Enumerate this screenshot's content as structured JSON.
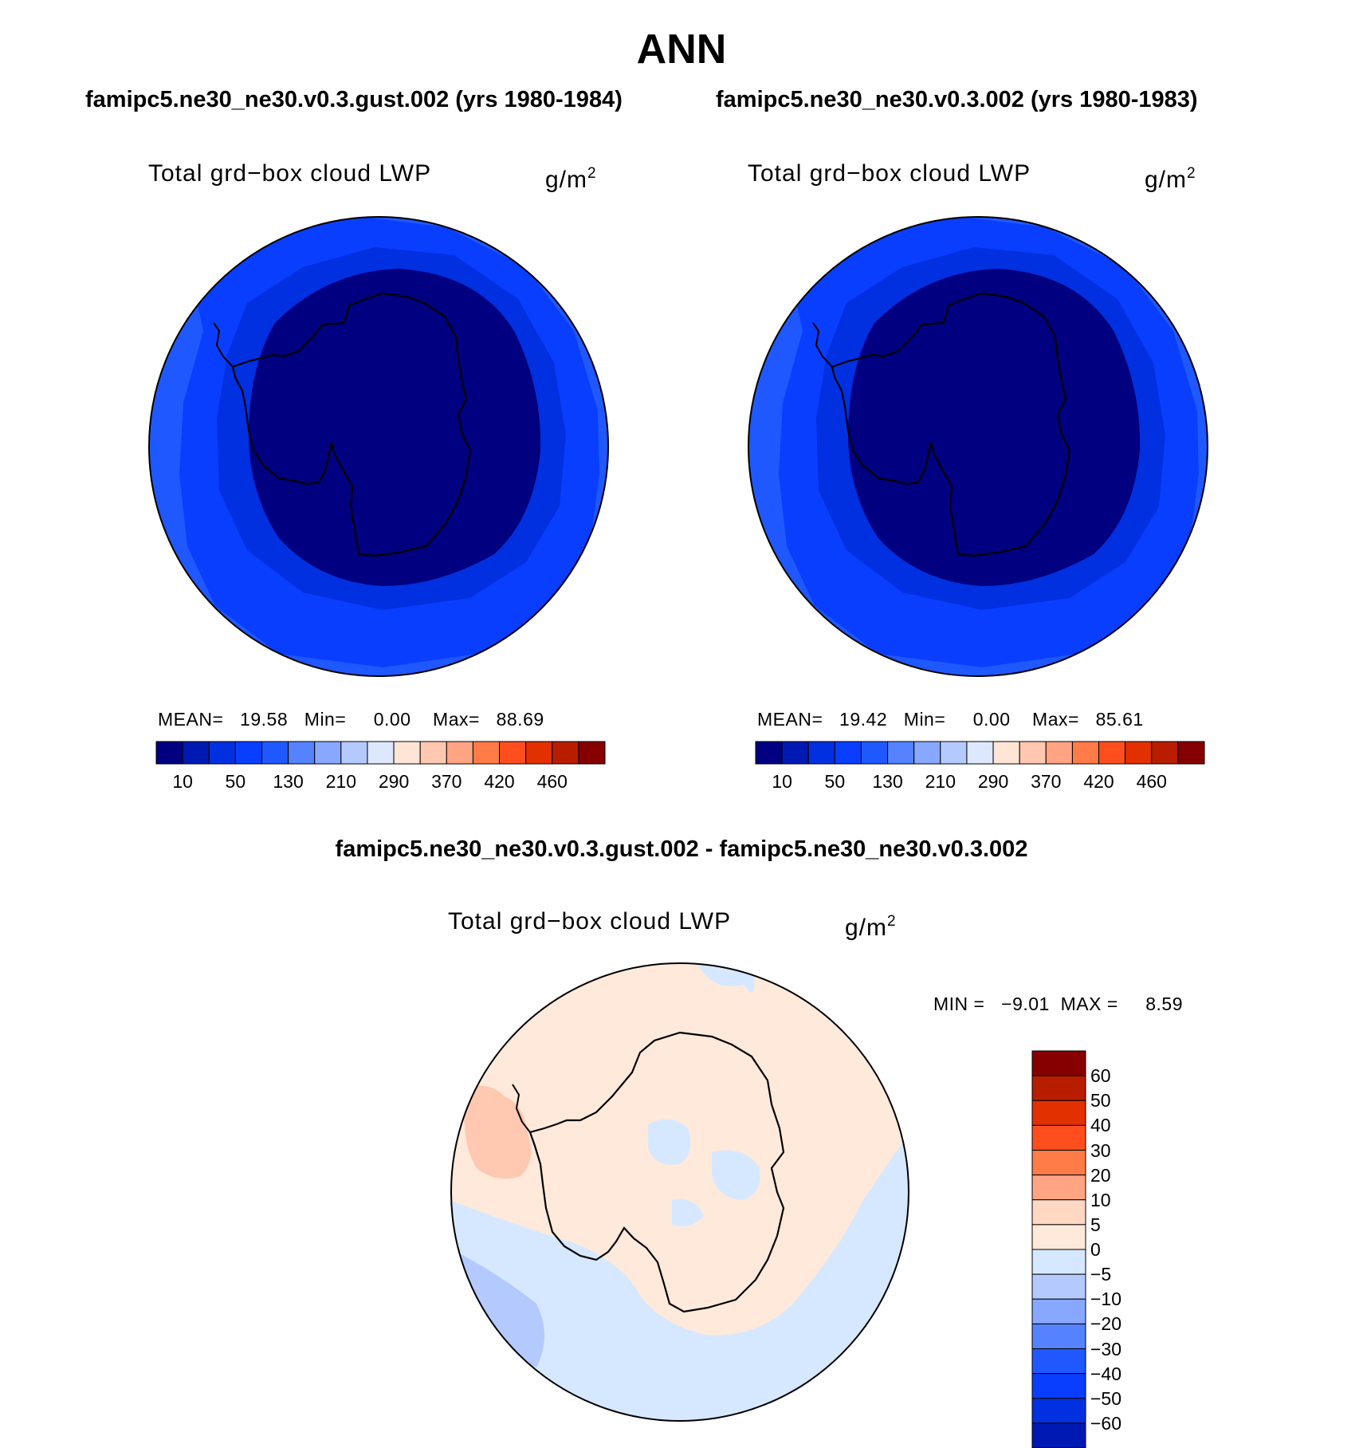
{
  "title": "ANN",
  "panels": [
    {
      "case_title": "famipc5.ne30_ne30.v0.3.gust.002 (yrs 1980-1984)",
      "variable": "Total grd−box cloud LWP",
      "units": "g/m",
      "units_exp": "2",
      "stats": "MEAN=   19.58   Min=     0.00    Max=   88.69",
      "colorbar_labels": [
        "10",
        "50",
        "130",
        "210",
        "290",
        "370",
        "420",
        "460"
      ]
    },
    {
      "case_title": "famipc5.ne30_ne30.v0.3.002 (yrs 1980-1983)",
      "variable": "Total grd−box cloud LWP",
      "units": "g/m",
      "units_exp": "2",
      "stats": "MEAN=   19.42   Min=     0.00    Max=   85.61",
      "colorbar_labels": [
        "10",
        "50",
        "130",
        "210",
        "290",
        "370",
        "420",
        "460"
      ]
    }
  ],
  "diff_panel": {
    "case_title": "famipc5.ne30_ne30.v0.3.gust.002 - famipc5.ne30_ne30.v0.3.002",
    "variable": "Total grd−box cloud LWP",
    "units": "g/m",
    "units_exp": "2",
    "stats": "MIN =   −9.01  MAX =     8.59",
    "colorbar_labels": [
      "60",
      "50",
      "40",
      "30",
      "20",
      "10",
      "5",
      "0",
      "−5",
      "−10",
      "−20",
      "−30",
      "−40",
      "−50",
      "−60"
    ]
  },
  "colors": {
    "main_scale": [
      "#000080",
      "#0019b3",
      "#0030e0",
      "#0a3eff",
      "#2058ff",
      "#5582ff",
      "#88a8ff",
      "#b4caff",
      "#dde8ff",
      "#ffe5d6",
      "#ffc8b0",
      "#ffa584",
      "#ff7b48",
      "#ff4e1e",
      "#e23000",
      "#b81d00",
      "#870000"
    ],
    "diff_scale": [
      "#870000",
      "#b81d00",
      "#e23000",
      "#ff4e1e",
      "#ff7b48",
      "#ffa584",
      "#ffd8c3",
      "#ffe9da",
      "#d6e8ff",
      "#b4caff",
      "#88a8ff",
      "#5582ff",
      "#2058ff",
      "#0a3eff",
      "#0030e0",
      "#0019b3",
      "#000080"
    ]
  }
}
